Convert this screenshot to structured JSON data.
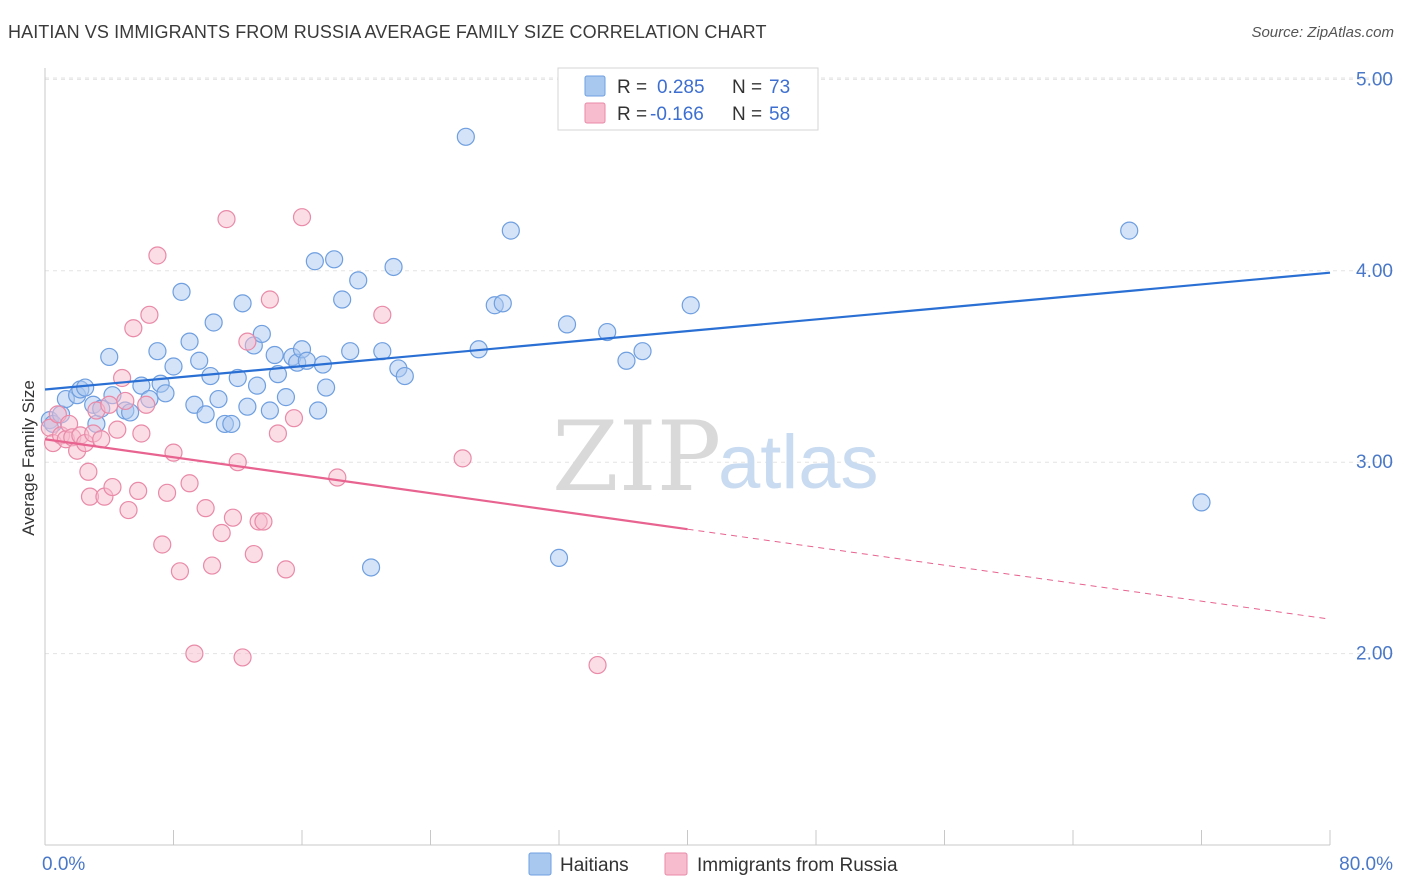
{
  "header": {
    "title": "HAITIAN VS IMMIGRANTS FROM RUSSIA AVERAGE FAMILY SIZE CORRELATION CHART",
    "source": "Source: ZipAtlas.com"
  },
  "watermark": {
    "zip": "ZIP",
    "atlas": "atlas"
  },
  "legend": {
    "rows": [
      {
        "r_label": "R =",
        "r_value": "0.285",
        "n_label": "N =",
        "n_value": "73",
        "color": "#a9c8f0",
        "stroke": "#6f9fe0"
      },
      {
        "r_label": "R =",
        "r_value": "-0.166",
        "n_label": "N =",
        "n_value": "58",
        "color": "#f7bccd",
        "stroke": "#e98aa8"
      }
    ]
  },
  "bottom_legend": [
    {
      "label": "Haitians",
      "color": "#a9c8f0",
      "stroke": "#6f9fe0"
    },
    {
      "label": "Immigrants from Russia",
      "color": "#f7bccd",
      "stroke": "#e98aa8"
    }
  ],
  "chart_data": {
    "type": "scatter",
    "title": "HAITIAN VS IMMIGRANTS FROM RUSSIA AVERAGE FAMILY SIZE CORRELATION CHART",
    "xlabel": "",
    "ylabel": "Average Family Size",
    "xlim": [
      0,
      80
    ],
    "ylim": [
      1.0,
      5.15
    ],
    "x_tick_labels": {
      "left": "0.0%",
      "right": "80.0%"
    },
    "y_ticks": [
      {
        "value": 2.0,
        "label": "2.00"
      },
      {
        "value": 3.0,
        "label": "3.00"
      },
      {
        "value": 4.0,
        "label": "4.00"
      },
      {
        "value": 5.0,
        "label": "5.00"
      }
    ],
    "series": [
      {
        "name": "Haitians",
        "color": "#6f9fe0",
        "fill": "#a9c8f0",
        "trend": {
          "x0": 0,
          "y0": 3.38,
          "x1": 80,
          "y1": 3.99,
          "color": "#2a6fd3",
          "dashed_from": null
        },
        "points": [
          [
            0.3,
            3.22
          ],
          [
            0.5,
            3.2
          ],
          [
            1.0,
            3.25
          ],
          [
            1.3,
            3.33
          ],
          [
            2.0,
            3.35
          ],
          [
            2.2,
            3.38
          ],
          [
            2.5,
            3.39
          ],
          [
            3.0,
            3.3
          ],
          [
            3.2,
            3.2
          ],
          [
            3.5,
            3.28
          ],
          [
            4.0,
            3.55
          ],
          [
            4.2,
            3.35
          ],
          [
            5.0,
            3.27
          ],
          [
            5.3,
            3.26
          ],
          [
            6.0,
            3.4
          ],
          [
            6.5,
            3.33
          ],
          [
            7.0,
            3.58
          ],
          [
            7.2,
            3.41
          ],
          [
            7.5,
            3.36
          ],
          [
            8.0,
            3.5
          ],
          [
            8.5,
            3.89
          ],
          [
            9.0,
            3.63
          ],
          [
            9.3,
            3.3
          ],
          [
            9.6,
            3.53
          ],
          [
            10.0,
            3.25
          ],
          [
            10.3,
            3.45
          ],
          [
            10.5,
            3.73
          ],
          [
            10.8,
            3.33
          ],
          [
            11.2,
            3.2
          ],
          [
            11.6,
            3.2
          ],
          [
            12.0,
            3.44
          ],
          [
            12.3,
            3.83
          ],
          [
            12.6,
            3.29
          ],
          [
            13.0,
            3.61
          ],
          [
            13.2,
            3.4
          ],
          [
            13.5,
            3.67
          ],
          [
            14.0,
            3.27
          ],
          [
            14.3,
            3.56
          ],
          [
            14.5,
            3.46
          ],
          [
            15.0,
            3.34
          ],
          [
            15.4,
            3.55
          ],
          [
            15.7,
            3.52
          ],
          [
            16.0,
            3.59
          ],
          [
            16.3,
            3.53
          ],
          [
            16.8,
            4.05
          ],
          [
            17.0,
            3.27
          ],
          [
            17.3,
            3.51
          ],
          [
            17.5,
            3.39
          ],
          [
            18.0,
            4.06
          ],
          [
            18.5,
            3.85
          ],
          [
            19.0,
            3.58
          ],
          [
            19.5,
            3.95
          ],
          [
            20.3,
            2.45
          ],
          [
            21.0,
            3.58
          ],
          [
            21.7,
            4.02
          ],
          [
            22.0,
            3.49
          ],
          [
            22.4,
            3.45
          ],
          [
            26.2,
            4.7
          ],
          [
            27.0,
            3.59
          ],
          [
            28.0,
            3.82
          ],
          [
            28.5,
            3.83
          ],
          [
            29.0,
            4.21
          ],
          [
            32.0,
            2.5
          ],
          [
            32.5,
            3.72
          ],
          [
            35.0,
            3.68
          ],
          [
            36.2,
            3.53
          ],
          [
            37.2,
            3.58
          ],
          [
            40.2,
            3.82
          ],
          [
            67.5,
            4.21
          ],
          [
            72.0,
            2.79
          ]
        ]
      },
      {
        "name": "Immigrants from Russia",
        "color": "#e98aa8",
        "fill": "#f7bccd",
        "trend": {
          "x0": 0,
          "y0": 3.12,
          "x1": 80,
          "y1": 2.18,
          "color": "#e8638f",
          "dashed_from": 40
        },
        "points": [
          [
            0.3,
            3.18
          ],
          [
            0.5,
            3.1
          ],
          [
            0.8,
            3.25
          ],
          [
            1.0,
            3.14
          ],
          [
            1.3,
            3.12
          ],
          [
            1.5,
            3.2
          ],
          [
            1.7,
            3.13
          ],
          [
            2.0,
            3.06
          ],
          [
            2.2,
            3.14
          ],
          [
            2.5,
            3.1
          ],
          [
            2.7,
            2.95
          ],
          [
            2.8,
            2.82
          ],
          [
            3.0,
            3.15
          ],
          [
            3.2,
            3.27
          ],
          [
            3.5,
            3.12
          ],
          [
            3.7,
            2.82
          ],
          [
            4.0,
            3.3
          ],
          [
            4.2,
            2.87
          ],
          [
            4.5,
            3.17
          ],
          [
            4.8,
            3.44
          ],
          [
            5.0,
            3.32
          ],
          [
            5.2,
            2.75
          ],
          [
            5.5,
            3.7
          ],
          [
            5.8,
            2.85
          ],
          [
            6.0,
            3.15
          ],
          [
            6.3,
            3.3
          ],
          [
            6.5,
            3.77
          ],
          [
            7.0,
            4.08
          ],
          [
            7.3,
            2.57
          ],
          [
            7.6,
            2.84
          ],
          [
            8.0,
            3.05
          ],
          [
            8.4,
            2.43
          ],
          [
            9.0,
            2.89
          ],
          [
            9.3,
            2.0
          ],
          [
            10.0,
            2.76
          ],
          [
            10.4,
            2.46
          ],
          [
            11.0,
            2.63
          ],
          [
            11.3,
            4.27
          ],
          [
            11.7,
            2.71
          ],
          [
            12.0,
            3.0
          ],
          [
            12.3,
            1.98
          ],
          [
            12.6,
            3.63
          ],
          [
            13.0,
            2.52
          ],
          [
            13.3,
            2.69
          ],
          [
            13.6,
            2.69
          ],
          [
            14.0,
            3.85
          ],
          [
            14.5,
            3.15
          ],
          [
            15.0,
            2.44
          ],
          [
            15.5,
            3.23
          ],
          [
            16.0,
            4.28
          ],
          [
            18.2,
            2.92
          ],
          [
            21.0,
            3.77
          ],
          [
            26.0,
            3.02
          ],
          [
            34.4,
            1.94
          ]
        ]
      }
    ]
  }
}
